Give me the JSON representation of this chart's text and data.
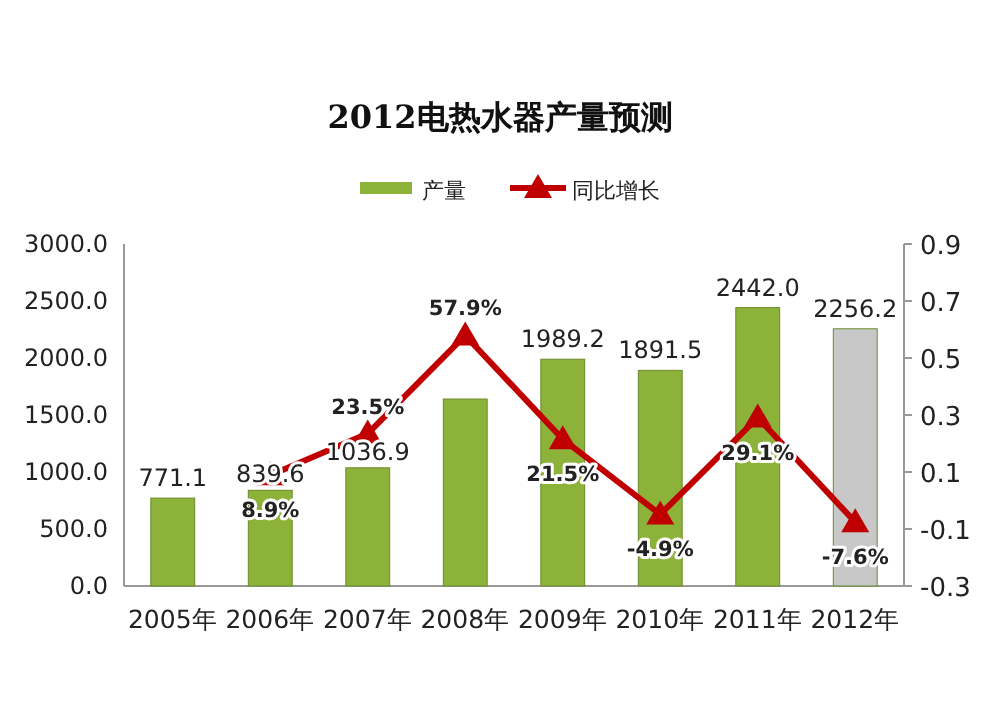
{
  "chart_data": {
    "type": "bar",
    "title": "2012电热水器产量预测",
    "categories": [
      "2005年",
      "2006年",
      "2007年",
      "2008年",
      "2009年",
      "2010年",
      "2011年",
      "2012年"
    ],
    "series": [
      {
        "name": "产量",
        "color": "#8db23a",
        "colors": [
          "#8db23a",
          "#8db23a",
          "#8db23a",
          "#8db23a",
          "#8db23a",
          "#8db23a",
          "#8db23a",
          "#c8c8c8"
        ],
        "values": [
          771.1,
          839.6,
          1036.9,
          1640,
          1989.2,
          1891.5,
          2442.0,
          2256.2
        ],
        "value_labels": [
          "771.1",
          "839.6",
          "1036.9",
          null,
          "1989.2",
          "1891.5",
          "2442.0",
          "2256.2"
        ]
      },
      {
        "name": "同比增长",
        "type": "line",
        "axis": "y2",
        "color": "#c00000",
        "marker": "triangle",
        "values": [
          null,
          0.089,
          0.235,
          0.579,
          0.215,
          -0.049,
          0.291,
          -0.076
        ],
        "value_labels": [
          null,
          "8.9%",
          "23.5%",
          "57.9%",
          "21.5%",
          "-4.9%",
          "29.1%",
          "-7.6%"
        ]
      }
    ],
    "ylim": [
      0,
      3000
    ],
    "yticks": [
      {
        "value": 0,
        "label": "0.0"
      },
      {
        "value": 500,
        "label": "500.0"
      },
      {
        "value": 1000,
        "label": "1000.0"
      },
      {
        "value": 1500,
        "label": "1500.0"
      },
      {
        "value": 2000,
        "label": "2000.0"
      },
      {
        "value": 2500,
        "label": "2500.0"
      },
      {
        "value": 3000,
        "label": "3000.0"
      }
    ],
    "y2lim": [
      -0.3,
      0.9
    ],
    "y2ticks": [
      -0.3,
      -0.1,
      0.1,
      0.3,
      0.5,
      0.7,
      0.9
    ],
    "legend": "top",
    "grid": false
  }
}
